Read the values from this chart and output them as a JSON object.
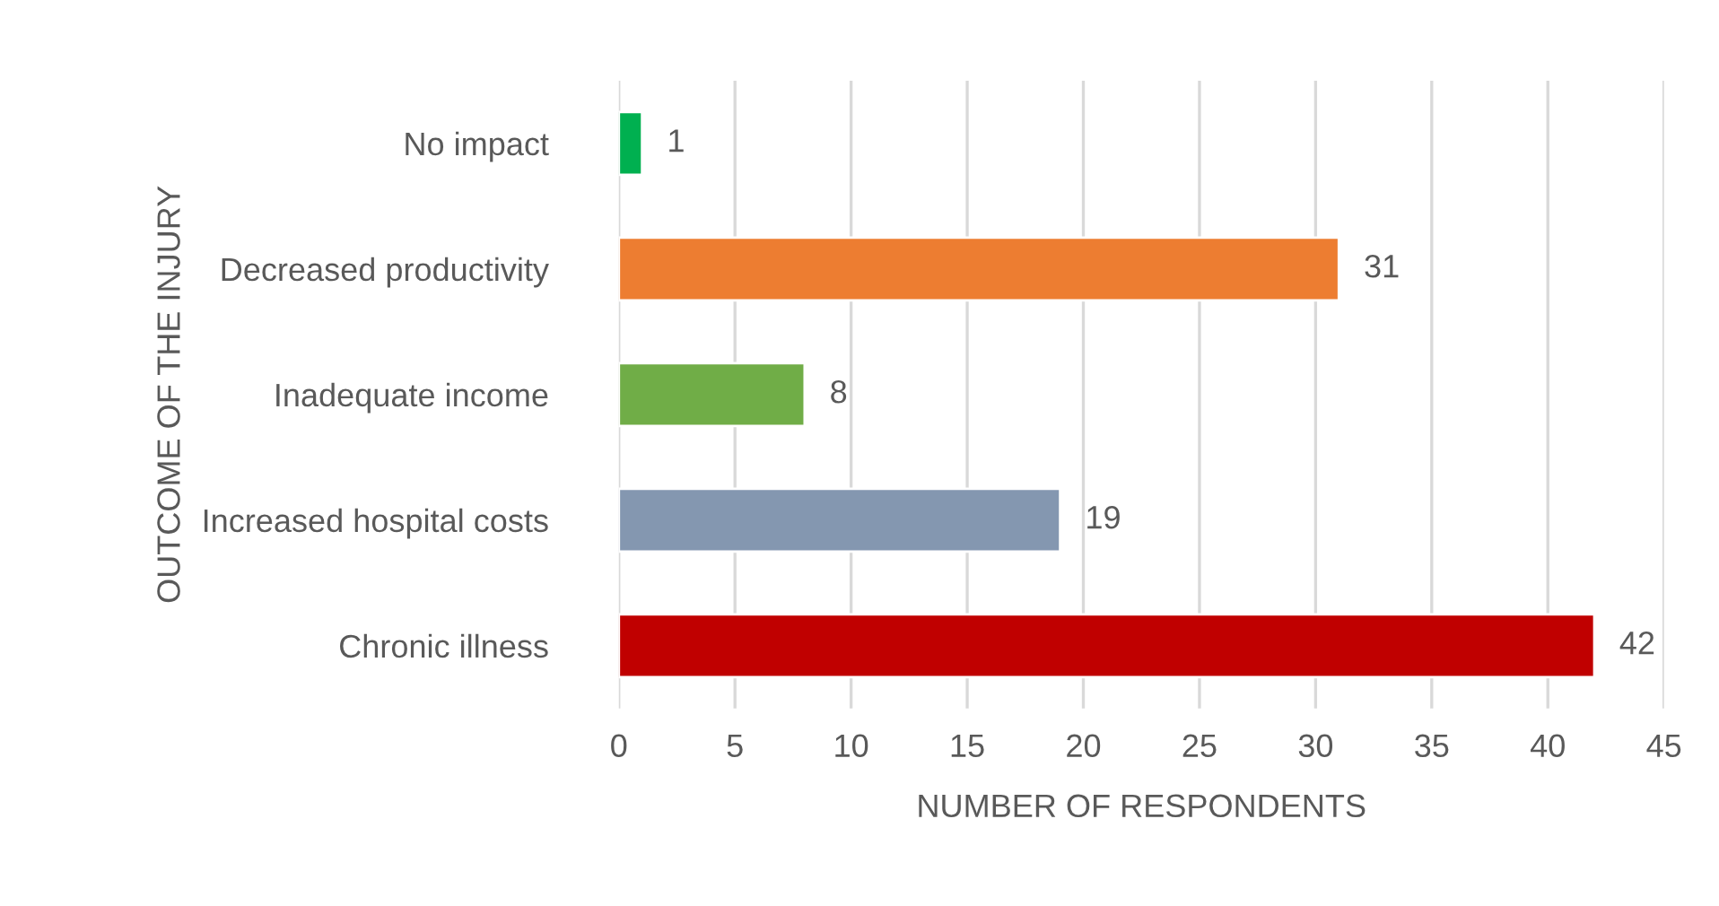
{
  "chart_data": {
    "type": "bar",
    "orientation": "horizontal",
    "xlabel": "NUMBER OF RESPONDENTS",
    "ylabel": "OUTCOME OF THE INJURY",
    "categories": [
      "No impact",
      "Decreased productivity",
      "Inadequate income",
      "Increased hospital costs",
      "Chronic illness"
    ],
    "values": [
      1,
      31,
      8,
      19,
      42
    ],
    "colors": [
      "#00b050",
      "#ed7d31",
      "#70ad47",
      "#8497b0",
      "#c00000"
    ],
    "xlim": [
      0,
      45
    ],
    "xticks": [
      0,
      5,
      10,
      15,
      20,
      25,
      30,
      35,
      40,
      45
    ],
    "grid": "x",
    "data_labels": true,
    "legend": false
  }
}
